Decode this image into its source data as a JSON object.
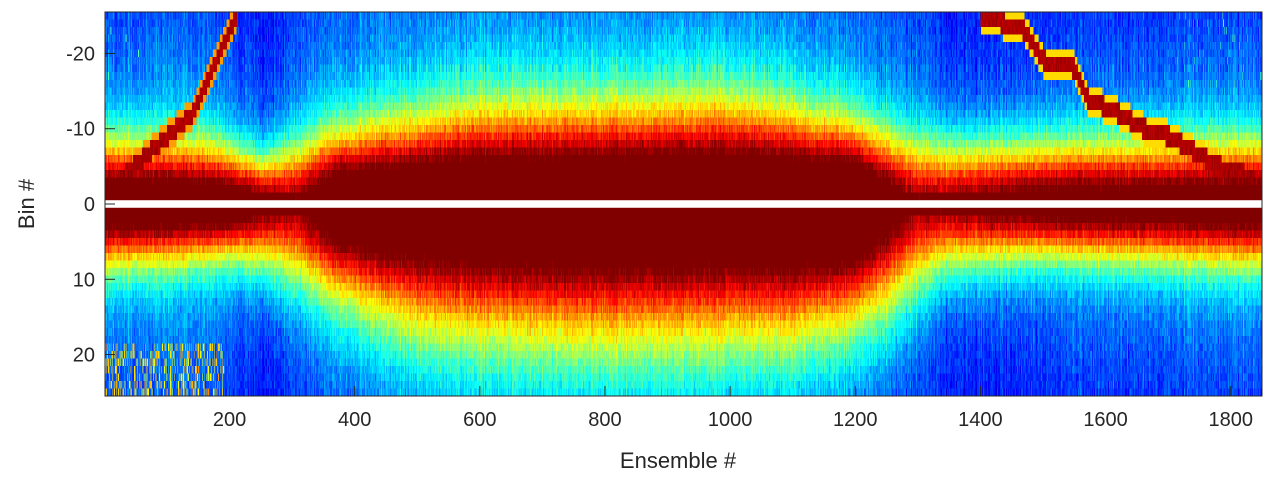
{
  "chart_data": {
    "type": "heatmap",
    "title": "",
    "xlabel": "Ensemble #",
    "ylabel": "Bin #",
    "xlim": [
      1,
      1850
    ],
    "ylim": [
      -25.5,
      25.5
    ],
    "y_reversed": true,
    "x_ticks": [
      200,
      400,
      600,
      800,
      1000,
      1200,
      1400,
      1600,
      1800
    ],
    "y_ticks": [
      -20,
      -10,
      0,
      10,
      20
    ],
    "colormap": "jet",
    "grid": false,
    "zero_bin_color": "#ffffff",
    "bright_band_approx": [
      {
        "ensemble": [
          0,
          200
        ],
        "bin_range": [
          -6,
          6
        ]
      },
      {
        "ensemble": [
          380,
          1240
        ],
        "bin_range": [
          -8,
          8
        ],
        "peak_bins": [
          -3,
          3
        ]
      },
      {
        "ensemble": [
          1300,
          1850
        ],
        "bin_range": [
          -7,
          6
        ]
      }
    ],
    "tracked_line_approx": {
      "segment_1": {
        "ensemble": [
          5,
          210
        ],
        "bin": [
          -2,
          -25
        ]
      },
      "segment_2": {
        "ensemble": [
          1400,
          1850
        ],
        "bin": [
          -25,
          -3
        ]
      }
    }
  }
}
